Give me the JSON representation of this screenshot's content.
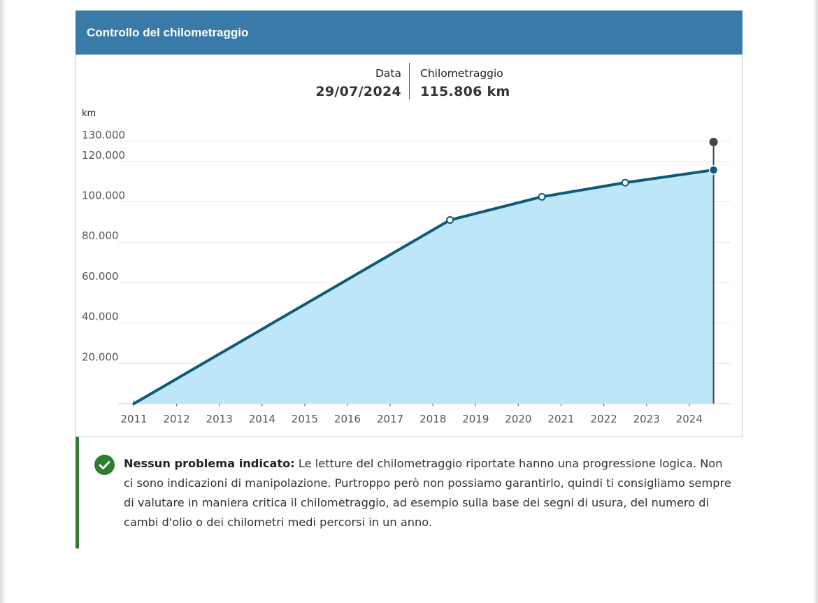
{
  "header": {
    "title": "Controllo del chilometraggio"
  },
  "summary": {
    "date_label": "Data",
    "date_value": "29/07/2024",
    "km_label": "Chilometraggio",
    "km_value": "115.806 km"
  },
  "notice": {
    "title": "Nessun problema indicato:",
    "text": " Le letture del chilometraggio riportate hanno una progressione logica. Non ci sono indicazioni di manipolazione. Purtroppo però non possiamo garantirlo, quindi ti consigliamo sempre di valutare in maniera critica il chilometraggio, ad esempio sulla base dei segni di usura, del numero di cambi d'olio o dei chilometri medi percorsi in un anno."
  },
  "colors": {
    "header": "#3a7aa8",
    "line": "#0d5a7a",
    "area": "#bde7f8",
    "success": "#2e7d32"
  },
  "chart_data": {
    "type": "area",
    "title": "",
    "ylabel": "km",
    "xlabel": "",
    "ylim": [
      0,
      130000
    ],
    "yticks": [
      20000,
      40000,
      60000,
      80000,
      100000,
      120000,
      130000
    ],
    "ytick_labels": [
      "20.000",
      "40.000",
      "60.000",
      "80.000",
      "100.000",
      "120.000",
      "130.000"
    ],
    "xlim": [
      2011,
      2024.6
    ],
    "xticks": [
      "2011",
      "2012",
      "2013",
      "2014",
      "2015",
      "2016",
      "2017",
      "2018",
      "2019",
      "2020",
      "2021",
      "2022",
      "2023",
      "2024"
    ],
    "series": [
      {
        "name": "Chilometraggio",
        "x": [
          2011.0,
          2018.4,
          2020.55,
          2022.5,
          2024.57
        ],
        "y": [
          0,
          91000,
          102500,
          109500,
          115806
        ]
      }
    ],
    "cursor_x": 2024.57
  }
}
